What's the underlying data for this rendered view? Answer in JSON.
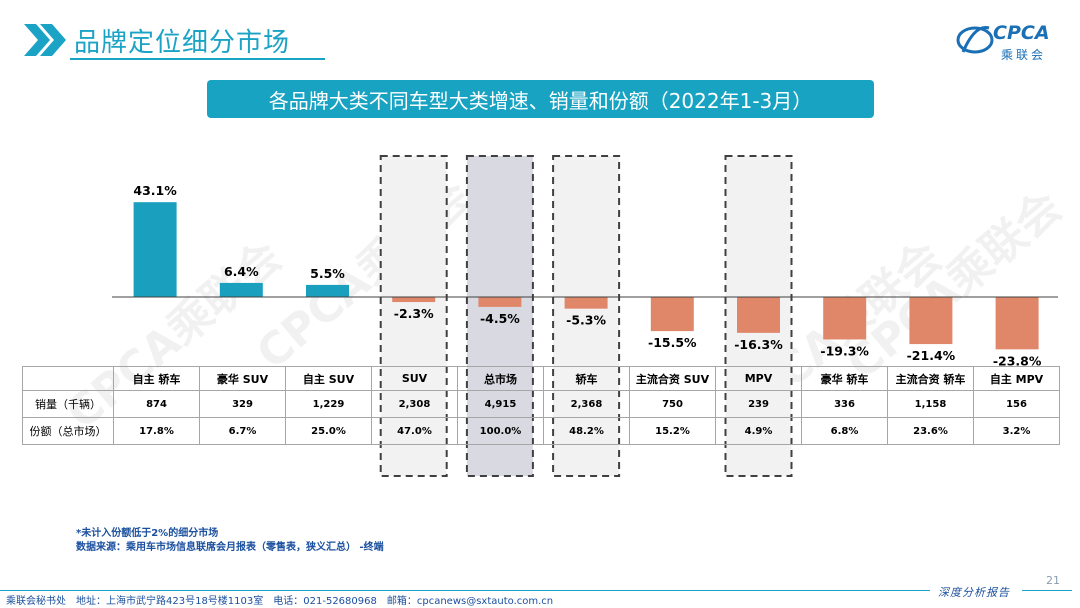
{
  "header": {
    "title": "品牌定位细分市场"
  },
  "logo": {
    "word": "CPCA",
    "sub": "乘联会"
  },
  "banner": {
    "text": "各品牌大类不同车型大类增速、销量和份额（2022年1-3月）"
  },
  "watermark": "CPCA乘联会",
  "chart_data": {
    "type": "bar",
    "categories": [
      "自主 轿车",
      "豪华 SUV",
      "自主 SUV",
      "SUV",
      "总市场",
      "轿车",
      "主流合资 SUV",
      "MPV",
      "豪华 轿车",
      "主流合资 轿车",
      "自主 MPV"
    ],
    "values": [
      43.1,
      6.4,
      5.5,
      -2.3,
      -4.5,
      -5.3,
      -15.5,
      -16.3,
      -19.3,
      -21.4,
      -23.8
    ],
    "value_labels": [
      "43.1%",
      "6.4%",
      "5.5%",
      "-2.3%",
      "-4.5%",
      "-5.3%",
      "-15.5%",
      "-16.3%",
      "-19.3%",
      "-21.4%",
      "-23.8%"
    ],
    "highlighted": [
      "SUV",
      "总市场",
      "轿车",
      "MPV"
    ],
    "colors": {
      "positive": "#1a9fbf",
      "negative": "#e0876a",
      "highlight_fill": "#f2f2f2",
      "market_fill": "#d9d9e2"
    },
    "ylim": [
      -25,
      45
    ],
    "grid": false
  },
  "table": {
    "rows": [
      {
        "label": "销量（千辆）",
        "values": [
          "874",
          "329",
          "1,229",
          "2,308",
          "4,915",
          "2,368",
          "750",
          "239",
          "336",
          "1,158",
          "156"
        ]
      },
      {
        "label": "份额（总市场）",
        "values": [
          "17.8%",
          "6.7%",
          "25.0%",
          "47.0%",
          "100.0%",
          "48.2%",
          "15.2%",
          "4.9%",
          "6.8%",
          "23.6%",
          "3.2%"
        ]
      }
    ]
  },
  "footnotes": [
    "*未计入份额低于2%的细分市场",
    "数据来源：乘用车市场信息联席会月报表（零售表，狭义汇总） -终端"
  ],
  "footer": {
    "text": "乘联会秘书处　地址：上海市武宁路423号18号楼1103室　电话：021-52680968　邮箱：cpcanews@sxtauto.com.cn",
    "tag": "深度分析报告",
    "page": "21"
  }
}
